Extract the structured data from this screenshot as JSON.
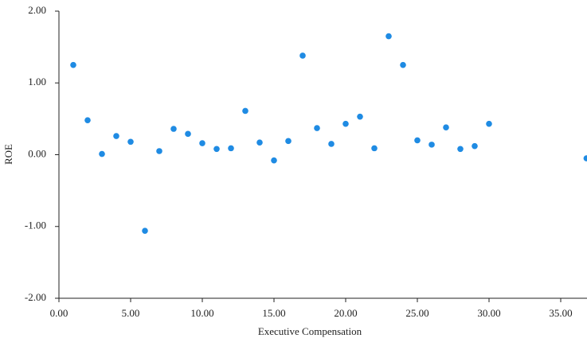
{
  "chart_data": {
    "type": "scatter",
    "x_label": "Executive Compensation",
    "y_label": "ROE",
    "color": "#1f8be3",
    "series": [
      {
        "name": null,
        "color": "#1f8be3",
        "x": [
          1,
          2,
          3,
          4,
          5,
          6,
          7,
          8,
          9,
          10,
          11,
          12,
          13,
          14,
          15,
          16,
          17,
          18,
          19,
          20,
          21,
          22,
          23,
          24,
          25,
          26,
          27,
          28,
          29,
          30,
          36.8
        ],
        "values": [
          1.25,
          0.48,
          0.01,
          0.26,
          0.18,
          -1.06,
          0.05,
          0.36,
          0.29,
          0.16,
          0.08,
          0.09,
          0.61,
          0.17,
          -0.08,
          0.19,
          1.38,
          0.37,
          0.15,
          0.43,
          0.53,
          0.09,
          1.65,
          1.25,
          0.2,
          0.14,
          0.38,
          0.08,
          0.12,
          0.43,
          -0.05
        ]
      }
    ],
    "xlim": [
      0,
      36.8
    ],
    "ylim": [
      -2,
      2
    ],
    "xticks": [
      {
        "value": 0,
        "label": "0.00"
      },
      {
        "value": 5,
        "label": "5.00"
      },
      {
        "value": 10,
        "label": "10.00"
      },
      {
        "value": 15,
        "label": "15.00"
      },
      {
        "value": 20,
        "label": "20.00"
      },
      {
        "value": 25,
        "label": "25.00"
      },
      {
        "value": 30,
        "label": "30.00"
      },
      {
        "value": 35,
        "label": "35.00"
      }
    ],
    "yticks": [
      {
        "value": -2,
        "label": "-2.00"
      },
      {
        "value": -1,
        "label": "-1.00"
      },
      {
        "value": 0,
        "label": "0.00"
      },
      {
        "value": 1,
        "label": "1.00"
      },
      {
        "value": 2,
        "label": "2.00"
      }
    ],
    "grid": false
  }
}
